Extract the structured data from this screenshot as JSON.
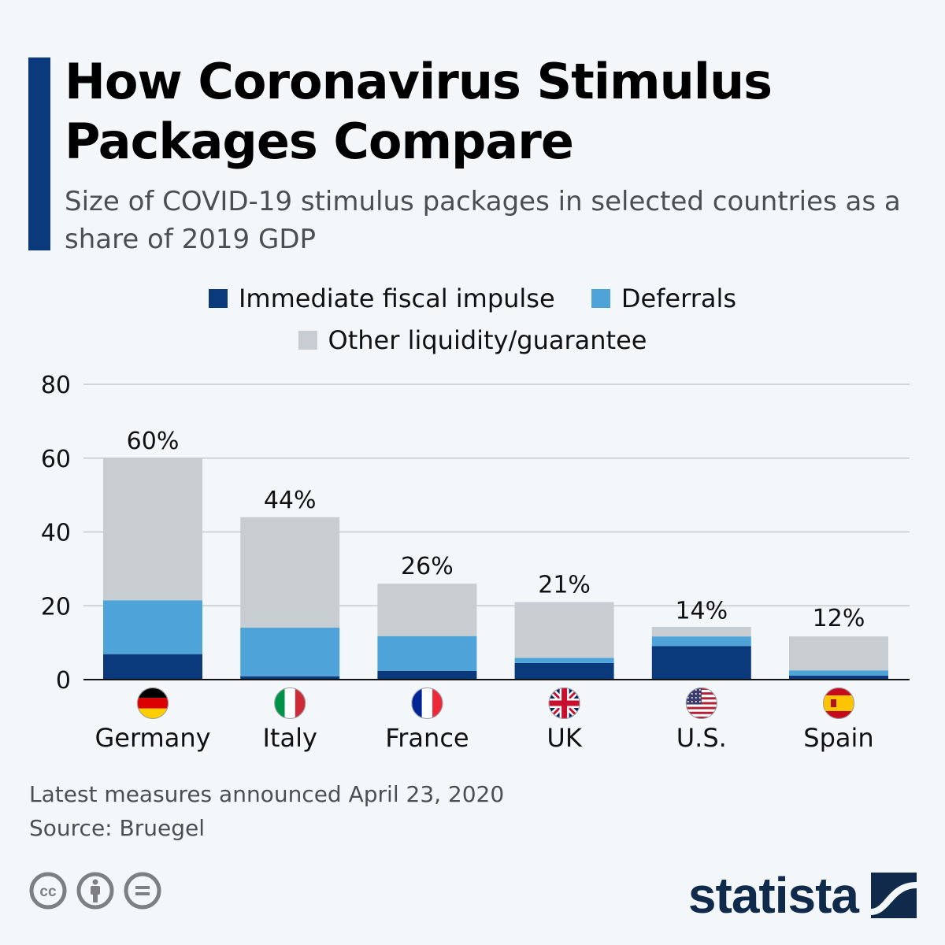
{
  "header": {
    "title": "How Coronavirus Stimulus Packages Compare",
    "subtitle": "Size of COVID-19 stimulus packages in selected countries as a share of 2019 GDP"
  },
  "legend": [
    {
      "label": "Immediate fiscal impulse",
      "color": "#0b3a7c"
    },
    {
      "label": "Deferrals",
      "color": "#4ea3d8"
    },
    {
      "label": "Other liquidity/guarantee",
      "color": "#c8cdd1"
    }
  ],
  "chart_data": {
    "type": "bar",
    "stacked": true,
    "title": "How Coronavirus Stimulus Packages Compare",
    "subtitle": "Size of COVID-19 stimulus packages in selected countries as a share of 2019 GDP",
    "xlabel": "",
    "ylabel": "",
    "ylim": [
      0,
      80
    ],
    "yticks": [
      0,
      20,
      40,
      60,
      80
    ],
    "grid": true,
    "legend_position": "top-center",
    "categories": [
      "Germany",
      "Italy",
      "France",
      "UK",
      "U.S.",
      "Spain"
    ],
    "flags": [
      "flag-germany",
      "flag-italy",
      "flag-france",
      "flag-uk",
      "flag-us",
      "flag-spain"
    ],
    "series": [
      {
        "name": "Immediate fiscal impulse",
        "color": "#0b3a7c",
        "values": [
          6.9,
          0.9,
          2.4,
          4.5,
          9.1,
          1.1
        ]
      },
      {
        "name": "Deferrals",
        "color": "#4ea3d8",
        "values": [
          14.6,
          13.2,
          9.4,
          1.4,
          2.6,
          1.4
        ]
      },
      {
        "name": "Other liquidity/guarantee",
        "color": "#c8cdd1",
        "values": [
          38.5,
          29.9,
          14.2,
          15.1,
          2.6,
          9.2
        ]
      }
    ],
    "totals": [
      60,
      44,
      26,
      21,
      14,
      12
    ],
    "total_labels": [
      "60%",
      "44%",
      "26%",
      "21%",
      "14%",
      "12%"
    ]
  },
  "footer": {
    "note": "Latest measures announced April 23, 2020",
    "source": "Source: Bruegel",
    "license_icons": [
      "cc-icon",
      "attribution-icon",
      "no-derivatives-icon"
    ],
    "brand": "statista"
  }
}
